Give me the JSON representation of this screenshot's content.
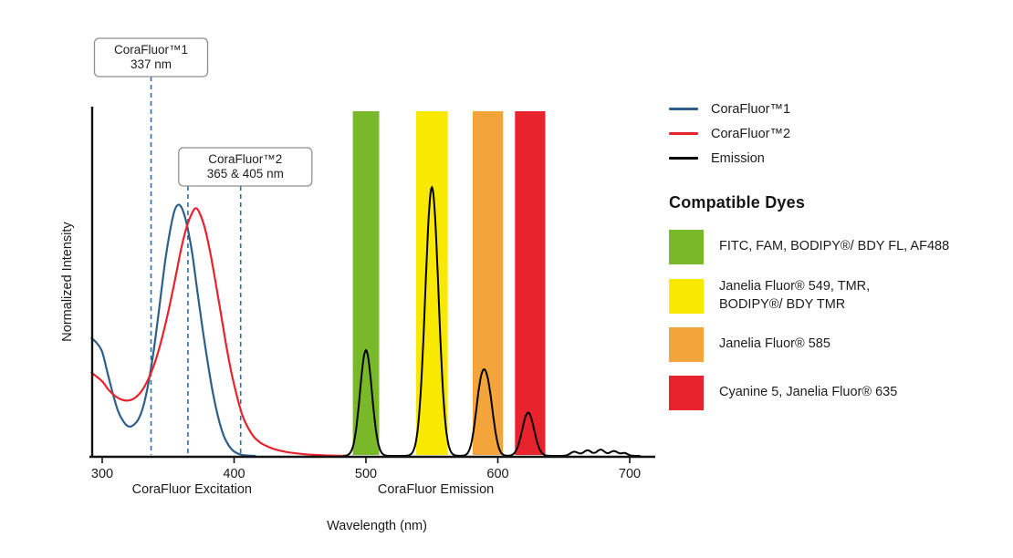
{
  "legend": {
    "series": [
      {
        "label": "CoraFluor™1",
        "color": "#2d5f8a"
      },
      {
        "label": "CoraFluor™2",
        "color": "#e8232e"
      },
      {
        "label": "Emission",
        "color": "#000000"
      }
    ],
    "compatible_dyes_heading": "Compatible Dyes",
    "dyes": [
      {
        "color": "#79b829",
        "lines": [
          "FITC, FAM, BODIPY®/ BDY FL, AF488"
        ]
      },
      {
        "color": "#f9e800",
        "lines": [
          "Janelia Fluor® 549, TMR,",
          "BODIPY®/ BDY TMR"
        ]
      },
      {
        "color": "#f3a43b",
        "lines": [
          "Janelia Fluor® 585"
        ]
      },
      {
        "color": "#e8232e",
        "lines": [
          "Cyanine 5, Janelia Fluor® 635"
        ]
      }
    ]
  },
  "chart_data": {
    "type": "line",
    "xlabel": "Wavelength (nm)",
    "ylabel": "Normalized Intensity",
    "xlim": [
      292,
      715
    ],
    "ylim": [
      0,
      1
    ],
    "x_ticks": [
      300,
      400,
      500,
      600,
      700
    ],
    "x_section_labels": [
      {
        "label": "CoraFluor Excitation",
        "center_nm": 368
      },
      {
        "label": "CoraFluor Emission",
        "center_nm": 553
      }
    ],
    "marker_line_color": "#2e6da4",
    "markers": [
      {
        "lines": [
          "CoraFluor™1",
          "337 nm"
        ],
        "wavelengths_nm": [
          337
        ]
      },
      {
        "lines": [
          "CoraFluor™2",
          "365 & 405 nm"
        ],
        "wavelengths_nm": [
          365,
          405
        ]
      }
    ],
    "bands": [
      {
        "id": "green",
        "color": "#79b829",
        "from_nm": 490,
        "to_nm": 510
      },
      {
        "id": "yellow",
        "color": "#f9e800",
        "from_nm": 538,
        "to_nm": 562
      },
      {
        "id": "orange",
        "color": "#f3a43b",
        "from_nm": 581,
        "to_nm": 604
      },
      {
        "id": "red",
        "color": "#e8232e",
        "from_nm": 613,
        "to_nm": 636
      }
    ],
    "series": [
      {
        "name": "CoraFluor™1",
        "kind": "excitation",
        "color": "#2d5f8a",
        "points": [
          [
            292,
            0.34
          ],
          [
            296,
            0.325
          ],
          [
            300,
            0.3
          ],
          [
            304,
            0.24
          ],
          [
            308,
            0.18
          ],
          [
            312,
            0.13
          ],
          [
            316,
            0.1
          ],
          [
            320,
            0.085
          ],
          [
            324,
            0.09
          ],
          [
            328,
            0.11
          ],
          [
            332,
            0.155
          ],
          [
            336,
            0.23
          ],
          [
            340,
            0.33
          ],
          [
            344,
            0.45
          ],
          [
            348,
            0.57
          ],
          [
            352,
            0.66
          ],
          [
            355,
            0.71
          ],
          [
            358,
            0.725
          ],
          [
            361,
            0.71
          ],
          [
            364,
            0.67
          ],
          [
            368,
            0.59
          ],
          [
            372,
            0.48
          ],
          [
            376,
            0.37
          ],
          [
            380,
            0.27
          ],
          [
            384,
            0.18
          ],
          [
            388,
            0.11
          ],
          [
            392,
            0.06
          ],
          [
            396,
            0.03
          ],
          [
            400,
            0.013
          ],
          [
            405,
            0.004
          ],
          [
            410,
            0.001
          ],
          [
            416,
            0
          ]
        ]
      },
      {
        "name": "CoraFluor™2",
        "kind": "excitation",
        "color": "#e8232e",
        "points": [
          [
            292,
            0.24
          ],
          [
            300,
            0.215
          ],
          [
            305,
            0.19
          ],
          [
            310,
            0.172
          ],
          [
            315,
            0.162
          ],
          [
            320,
            0.16
          ],
          [
            325,
            0.168
          ],
          [
            330,
            0.188
          ],
          [
            335,
            0.222
          ],
          [
            340,
            0.27
          ],
          [
            345,
            0.335
          ],
          [
            350,
            0.415
          ],
          [
            355,
            0.505
          ],
          [
            360,
            0.6
          ],
          [
            364,
            0.66
          ],
          [
            368,
            0.7
          ],
          [
            371,
            0.715
          ],
          [
            374,
            0.7
          ],
          [
            378,
            0.655
          ],
          [
            382,
            0.585
          ],
          [
            386,
            0.5
          ],
          [
            390,
            0.41
          ],
          [
            394,
            0.32
          ],
          [
            398,
            0.24
          ],
          [
            402,
            0.175
          ],
          [
            406,
            0.12
          ],
          [
            410,
            0.085
          ],
          [
            415,
            0.055
          ],
          [
            420,
            0.038
          ],
          [
            426,
            0.026
          ],
          [
            432,
            0.018
          ],
          [
            440,
            0.011
          ],
          [
            450,
            0.006
          ],
          [
            460,
            0.003
          ],
          [
            472,
            0.001
          ],
          [
            484,
            0
          ]
        ]
      },
      {
        "name": "Emission",
        "kind": "emission",
        "color": "#000000",
        "sample_range_nm": [
          483,
          708
        ],
        "peaks": [
          {
            "center_nm": 500,
            "height": 0.305,
            "sigma_nm": 4.5
          },
          {
            "center_nm": 550,
            "height": 0.775,
            "sigma_nm": 5
          },
          {
            "center_nm": 587,
            "height": 0.175,
            "sigma_nm": 4
          },
          {
            "center_nm": 593,
            "height": 0.155,
            "sigma_nm": 4
          },
          {
            "center_nm": 623,
            "height": 0.125,
            "sigma_nm": 4.5
          },
          {
            "center_nm": 658,
            "height": 0.012,
            "sigma_nm": 3
          },
          {
            "center_nm": 668,
            "height": 0.016,
            "sigma_nm": 3
          },
          {
            "center_nm": 678,
            "height": 0.018,
            "sigma_nm": 3
          },
          {
            "center_nm": 688,
            "height": 0.014,
            "sigma_nm": 3
          },
          {
            "center_nm": 696,
            "height": 0.008,
            "sigma_nm": 2.5
          }
        ]
      }
    ]
  }
}
